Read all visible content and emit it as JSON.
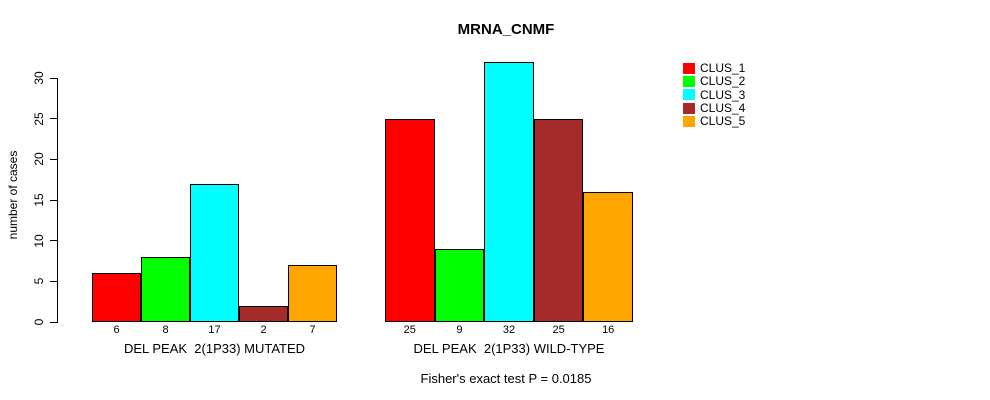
{
  "chart_data": {
    "type": "bar",
    "title": "MRNA_CNMF",
    "ylabel": "number of cases",
    "yticks": [
      0,
      5,
      10,
      15,
      20,
      25,
      30
    ],
    "ylim": [
      0,
      32
    ],
    "grid": false,
    "legend_position": "right",
    "clusters": [
      {
        "name": "CLUS_1",
        "color": "#FF0000"
      },
      {
        "name": "CLUS_2",
        "color": "#00FF00"
      },
      {
        "name": "CLUS_3",
        "color": "#00FFFF"
      },
      {
        "name": "CLUS_4",
        "color": "#A52A2A"
      },
      {
        "name": "CLUS_5",
        "color": "#FFA500"
      }
    ],
    "groups": [
      {
        "label": "DEL PEAK  2(1P33) MUTATED",
        "values": [
          6,
          8,
          17,
          2,
          7
        ]
      },
      {
        "label": "DEL PEAK  2(1P33) WILD-TYPE",
        "values": [
          25,
          9,
          32,
          25,
          16
        ]
      }
    ],
    "footnote": "Fisher's exact test P = 0.0185"
  }
}
